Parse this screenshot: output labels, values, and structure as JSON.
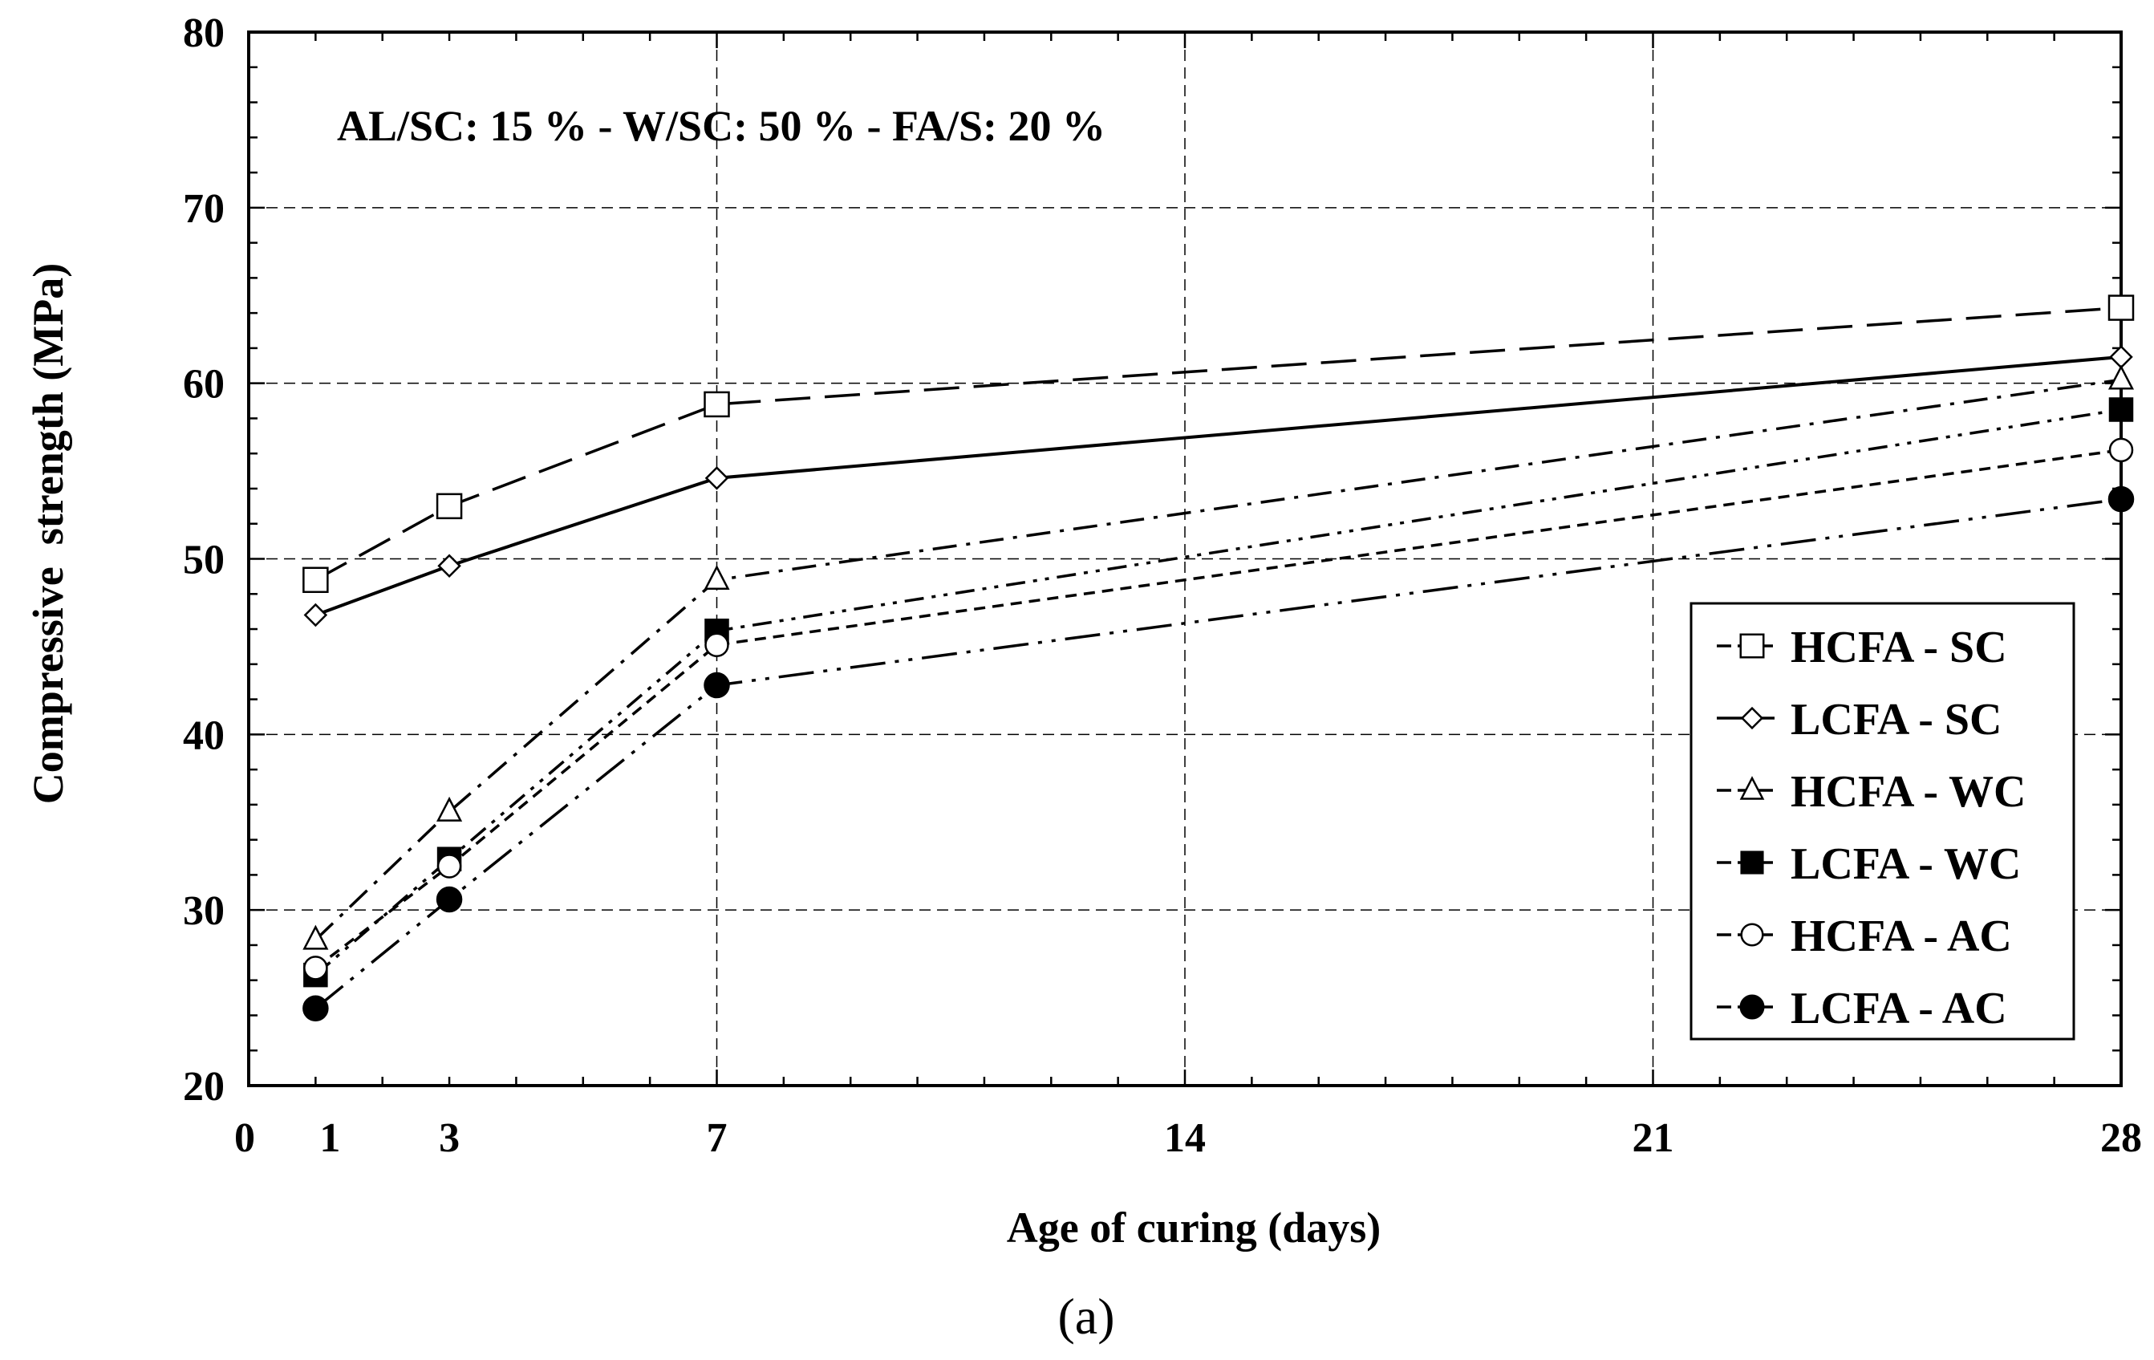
{
  "chart_data": {
    "type": "line",
    "title": "",
    "annotation": "AL/SC: 15 % - W/SC: 50 % - FA/S: 20 %",
    "xlabel": "Age of curing (days)",
    "ylabel": "Compressive  strength (MPa)",
    "panel_label": "(a)",
    "xlim": [
      0,
      28
    ],
    "ylim": [
      20,
      80
    ],
    "x_ticks": [
      0,
      1,
      3,
      7,
      14,
      21,
      28
    ],
    "x_tick_labels": [
      "0",
      "1",
      "3",
      "7",
      "14",
      "21",
      "28"
    ],
    "y_ticks": [
      20,
      30,
      40,
      50,
      60,
      70,
      80
    ],
    "y_tick_labels": [
      "20",
      "30",
      "40",
      "50",
      "60",
      "70",
      "80"
    ],
    "grid": true,
    "legend_position": "bottom-right",
    "x": [
      1,
      3,
      7,
      28
    ],
    "series": [
      {
        "name": "HCFA - SC",
        "marker": "square-open",
        "dash": "long-dash",
        "values": [
          48.8,
          53.0,
          58.8,
          64.3
        ]
      },
      {
        "name": "LCFA - SC",
        "marker": "diamond-open",
        "dash": "solid",
        "values": [
          46.8,
          49.6,
          54.6,
          61.5
        ]
      },
      {
        "name": "HCFA - WC",
        "marker": "triangle-open",
        "dash": "dash-dot",
        "values": [
          28.3,
          35.6,
          48.8,
          60.2
        ]
      },
      {
        "name": "LCFA - WC",
        "marker": "square-filled",
        "dash": "dash-dot-dot",
        "values": [
          26.3,
          32.9,
          45.9,
          58.5
        ]
      },
      {
        "name": "HCFA - AC",
        "marker": "circle-open",
        "dash": "short-dash",
        "values": [
          26.7,
          32.5,
          45.1,
          56.2
        ]
      },
      {
        "name": "LCFA - AC",
        "marker": "circle-filled",
        "dash": "long-dash-dot-dot",
        "values": [
          24.4,
          30.6,
          42.8,
          53.4
        ]
      }
    ]
  }
}
